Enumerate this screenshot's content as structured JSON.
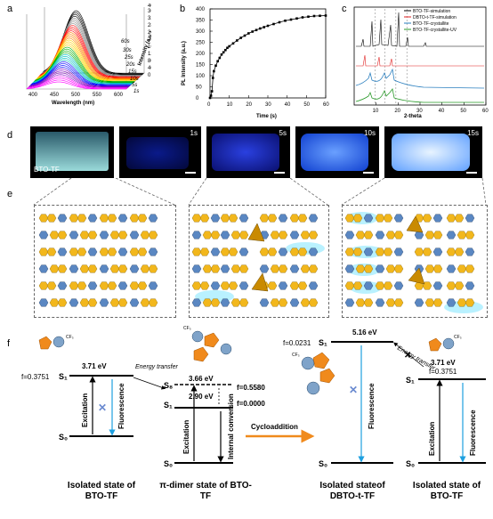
{
  "panels": {
    "a": "a",
    "b": "b",
    "c": "c",
    "d": "d",
    "e": "e",
    "f": "f"
  },
  "panel_a": {
    "xlabel": "Wavelength (nm)",
    "zlabel": "Intensity (a.u.)",
    "x_ticks": [
      "400",
      "450",
      "500",
      "550",
      "600"
    ],
    "z_ticks": [
      "0",
      "40",
      "80",
      "120",
      "160",
      "200",
      "240",
      "280",
      "320",
      "360",
      "400"
    ],
    "t_ticks": [
      "60s",
      "30s",
      "25s",
      "20s",
      "15s",
      "10s",
      "5s",
      "1s"
    ],
    "colors": [
      "#000000",
      "#808080",
      "#ff0000",
      "#ff8000",
      "#ffd000",
      "#00b000",
      "#00c0c0",
      "#0000ff",
      "#8000c0",
      "#ff00ff"
    ]
  },
  "chart_data": [
    {
      "type": "line",
      "panel": "b",
      "xlabel": "Time (s)",
      "ylabel": "PL Intensity (a.u.)",
      "xlim": [
        0,
        60
      ],
      "x_ticks": [
        "0",
        "10",
        "20",
        "30",
        "40",
        "50",
        "60"
      ],
      "y_ticks": [
        "0",
        "50",
        "100",
        "150",
        "200",
        "250",
        "300",
        "350",
        "400"
      ],
      "ylim": [
        0,
        400
      ],
      "x": [
        0,
        0.5,
        1,
        1.5,
        2,
        3,
        4,
        5,
        6,
        7,
        8,
        9,
        10,
        12,
        14,
        16,
        18,
        20,
        22,
        24,
        26,
        28,
        30,
        33,
        36,
        39,
        42,
        45,
        48,
        51,
        54,
        57,
        60
      ],
      "y": [
        0,
        10,
        30,
        90,
        120,
        145,
        165,
        180,
        195,
        205,
        215,
        225,
        232,
        245,
        258,
        270,
        280,
        290,
        298,
        305,
        312,
        318,
        324,
        332,
        340,
        347,
        352,
        357,
        362,
        365,
        368,
        369,
        370
      ]
    },
    {
      "type": "line",
      "panel": "c",
      "xlabel": "2-theta",
      "xlim": [
        0,
        60
      ],
      "x_ticks": [
        "10",
        "20",
        "30",
        "40",
        "50",
        "60"
      ],
      "series": [
        {
          "name": "BTO-TF-simulation",
          "color": "#000000"
        },
        {
          "name": "DBTO-t-TF-simulation",
          "color": "#e02020"
        },
        {
          "name": "BTO-TF-crystallite",
          "color": "#2a7fbf"
        },
        {
          "name": "BTO-TF-crystallite-UV",
          "color": "#2a9a2a"
        }
      ]
    }
  ],
  "panel_d": {
    "label": "BTO-TF",
    "times": [
      "1s",
      "5s",
      "10s",
      "15s"
    ]
  },
  "panel_f": {
    "s1": "S₁",
    "s0": "S₀",
    "s8": "S₈",
    "f1": "f=0.3751",
    "e1": "3.71 eV",
    "energy_transfer": "Energy transfer",
    "e2": "3.66 eV",
    "e3": "2.90 eV",
    "f2": "f=0.5580",
    "f3": "f=0.0000",
    "e4": "5.16 eV",
    "f4": "f=0.0231",
    "excitation": "Excitation",
    "fluorescence": "Fluorescence",
    "internal": "Internal conversion",
    "cycloaddition": "Cycloaddition",
    "cf3": "CF₃",
    "captions": [
      "Isolated state of BTO-TF",
      "π-dimer state of BTO-TF",
      "Isolated stateof DBTO-t-TF",
      "Isolated state of BTO-TF"
    ]
  }
}
